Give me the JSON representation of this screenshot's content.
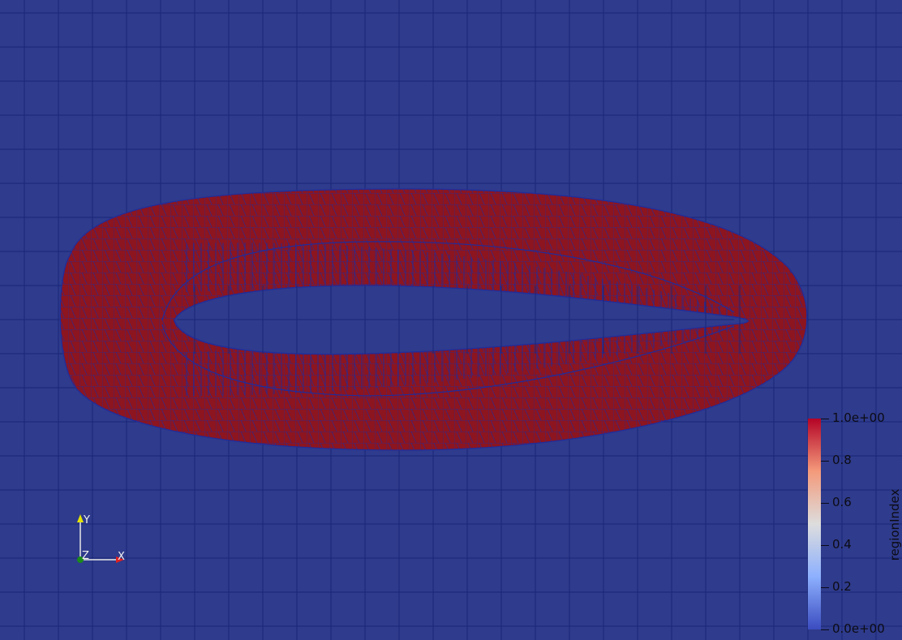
{
  "colorbar": {
    "title": "regionIndex",
    "ticks": [
      "1.0e+00",
      "0.8",
      "0.6",
      "0.4",
      "0.2",
      "0.0e+00"
    ],
    "colors": {
      "low": "#3b4cc0",
      "mid": "#dddddd",
      "high": "#b40426"
    }
  },
  "axes": {
    "x": "X",
    "y": "Y",
    "z": "Z"
  },
  "colors": {
    "background": "#2f3b8c",
    "mesh_fill": "#8c1520",
    "mesh_lines": "#1f2c9c",
    "grid_lines": "#1a2778"
  }
}
